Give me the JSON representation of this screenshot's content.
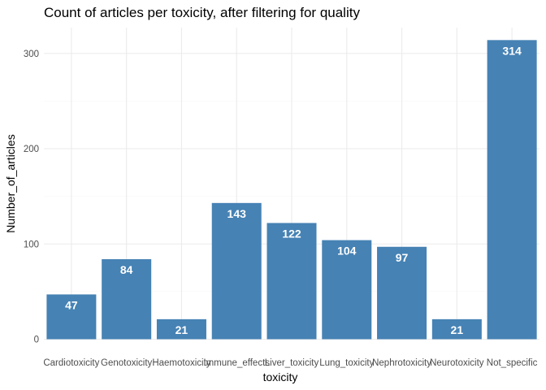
{
  "chart_data": {
    "type": "bar",
    "title": "Count of articles per toxicity, after filtering for quality",
    "xlabel": "toxicity",
    "ylabel": "Number_of_articles",
    "categories": [
      "Cardiotoxicity",
      "Genotoxicity",
      "Haemotoxicity",
      "Immune_effects",
      "Liver_toxicity",
      "Lung_toxicity",
      "Nephrotoxicity",
      "Neurotoxicity",
      "Not_specific"
    ],
    "values": [
      47,
      84,
      21,
      143,
      122,
      104,
      97,
      21,
      314
    ],
    "data_labels": [
      "47",
      "84",
      "21",
      "143",
      "122",
      "104",
      "97",
      "21",
      "314"
    ],
    "y_ticks": [
      0,
      100,
      200,
      300
    ],
    "y_tick_labels": [
      "0",
      "100",
      "200",
      "300"
    ],
    "ylim": [
      0,
      330
    ],
    "grid": true,
    "legend": "none",
    "bar_color": "#4682B4",
    "label_color": "#FFFFFF"
  }
}
